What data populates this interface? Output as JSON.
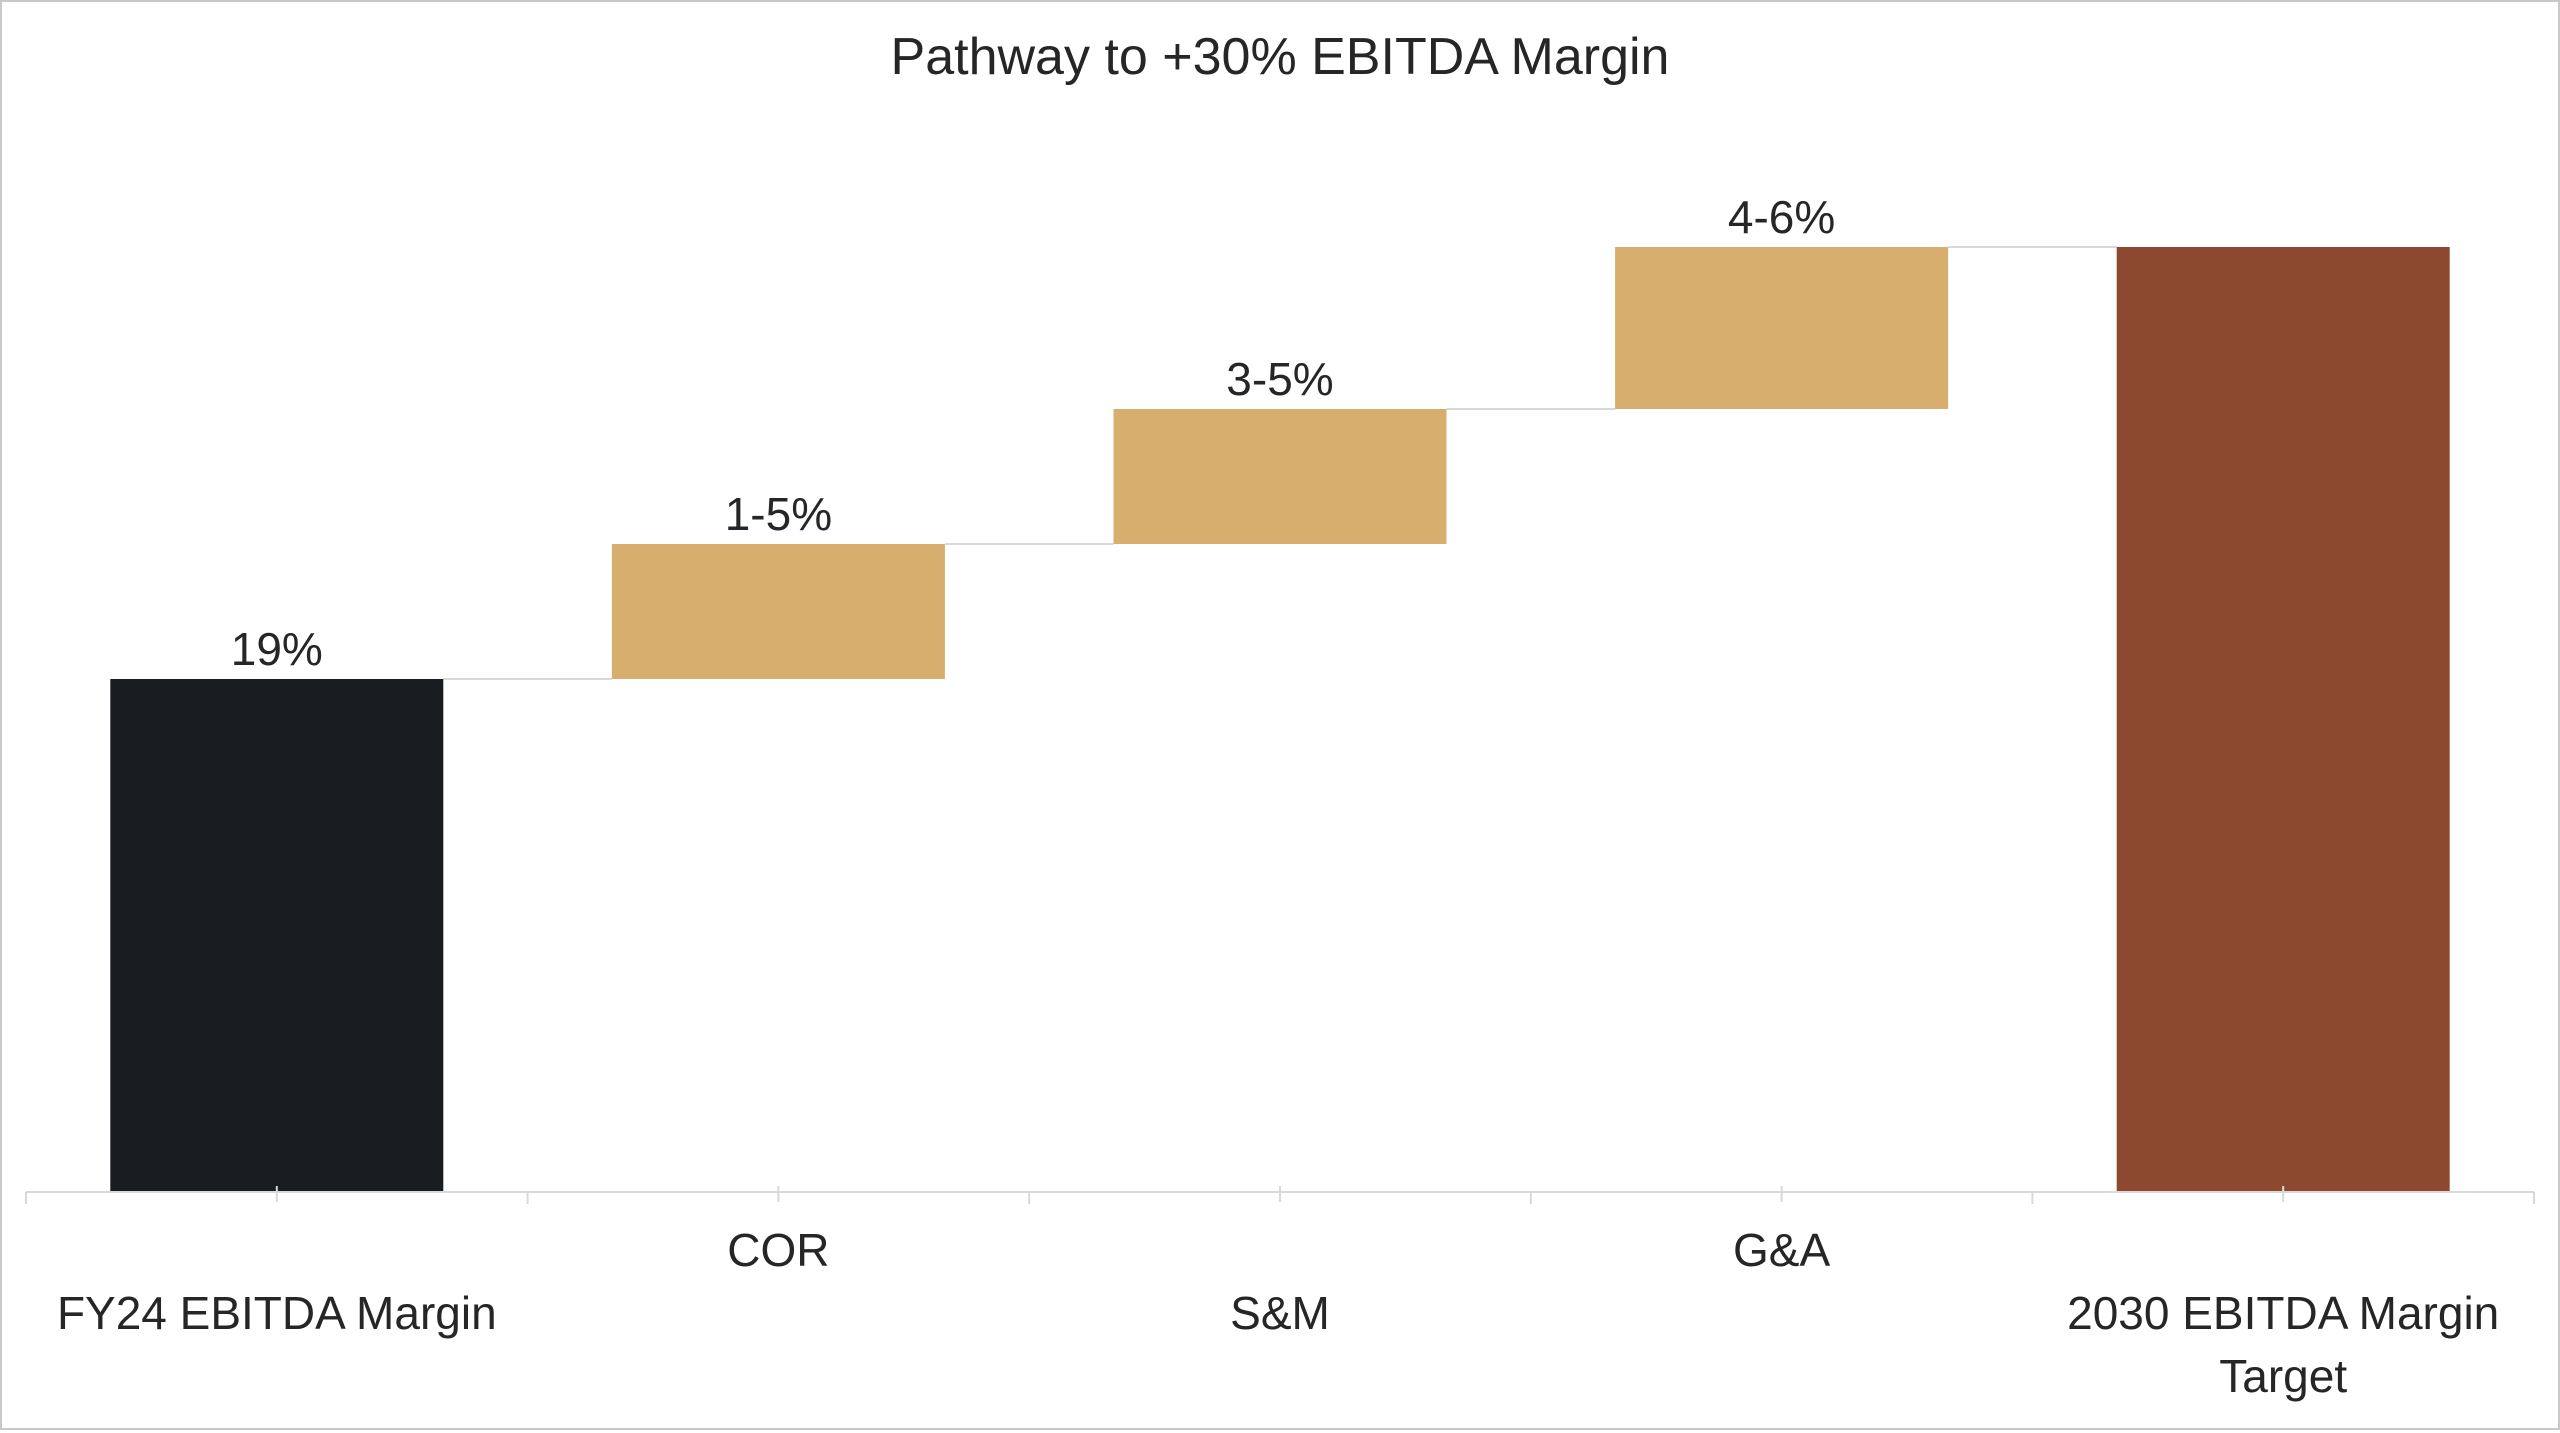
{
  "chart_data": {
    "type": "waterfall",
    "title": "Pathway to +30% EBITDA Margin",
    "categories": [
      "FY24 EBITDA Margin",
      "COR",
      "S&M",
      "G&A",
      "2030 EBITDA Margin Target"
    ],
    "values": [
      19,
      5,
      5,
      6,
      35
    ],
    "bar_kinds": [
      "total",
      "increase",
      "increase",
      "increase",
      "total"
    ],
    "data_labels": [
      "19%",
      "1-5%",
      "3-5%",
      "4-6%",
      ""
    ],
    "ylim": [
      0,
      35
    ],
    "grid": false,
    "legend": "none",
    "colors": {
      "start": "#191c21",
      "increase": "#d7ae6d",
      "end": "#8c4930",
      "connector": "#d9d9d9",
      "axis": "#d9d9d9"
    }
  }
}
